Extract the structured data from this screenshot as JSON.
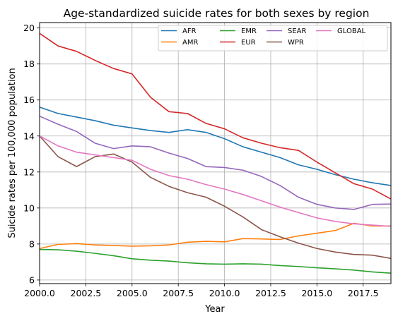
{
  "chart_data": {
    "type": "line",
    "title": "Age-standardized suicide rates for both sexes by region",
    "xlabel": "Year",
    "ylabel": "Suicide rates per 100,000 population",
    "xlim": [
      2000,
      2019
    ],
    "ylim": [
      5.8,
      20.3
    ],
    "xticks": [
      "2000.0",
      "2002.5",
      "2005.0",
      "2007.5",
      "2010.0",
      "2012.5",
      "2015.0",
      "2017.5"
    ],
    "xtick_values": [
      2000,
      2002.5,
      2005,
      2007.5,
      2010,
      2012.5,
      2015,
      2017.5
    ],
    "yticks": [
      "6",
      "8",
      "10",
      "12",
      "14",
      "16",
      "18",
      "20"
    ],
    "ytick_values": [
      6,
      8,
      10,
      12,
      14,
      16,
      18,
      20
    ],
    "grid": true,
    "legend_position": "top-right",
    "x": [
      2000,
      2001,
      2002,
      2003,
      2004,
      2005,
      2006,
      2007,
      2008,
      2009,
      2010,
      2011,
      2012,
      2013,
      2014,
      2015,
      2016,
      2017,
      2018,
      2019
    ],
    "series": [
      {
        "name": "AFR",
        "color": "#1f77b4",
        "values": [
          15.6,
          15.25,
          15.05,
          14.85,
          14.6,
          14.45,
          14.3,
          14.2,
          14.35,
          14.2,
          13.85,
          13.4,
          13.1,
          12.8,
          12.4,
          12.15,
          11.85,
          11.6,
          11.4,
          11.25
        ]
      },
      {
        "name": "AMR",
        "color": "#ff7f0e",
        "values": [
          7.75,
          7.98,
          8.02,
          7.95,
          7.92,
          7.88,
          7.9,
          7.95,
          8.1,
          8.15,
          8.12,
          8.3,
          8.28,
          8.25,
          8.45,
          8.6,
          8.75,
          9.15,
          9.0,
          9.0
        ]
      },
      {
        "name": "EMR",
        "color": "#2ca02c",
        "values": [
          7.7,
          7.68,
          7.6,
          7.48,
          7.35,
          7.18,
          7.1,
          7.05,
          6.96,
          6.9,
          6.88,
          6.9,
          6.88,
          6.8,
          6.75,
          6.68,
          6.62,
          6.55,
          6.45,
          6.38
        ]
      },
      {
        "name": "EUR",
        "color": "#d62728",
        "values": [
          19.7,
          19.0,
          18.7,
          18.2,
          17.75,
          17.45,
          16.15,
          15.35,
          15.25,
          14.7,
          14.4,
          13.9,
          13.6,
          13.35,
          13.2,
          12.55,
          11.95,
          11.35,
          11.05,
          10.5
        ]
      },
      {
        "name": "SEAR",
        "color": "#9467bd",
        "values": [
          15.1,
          14.65,
          14.25,
          13.6,
          13.3,
          13.45,
          13.4,
          13.05,
          12.75,
          12.3,
          12.25,
          12.1,
          11.75,
          11.25,
          10.6,
          10.2,
          10.0,
          9.92,
          10.2,
          10.22
        ]
      },
      {
        "name": "WPR",
        "color": "#8c564b",
        "values": [
          14.0,
          12.85,
          12.3,
          12.85,
          13.0,
          12.55,
          11.7,
          11.2,
          10.85,
          10.6,
          10.1,
          9.5,
          8.8,
          8.4,
          8.05,
          7.75,
          7.55,
          7.42,
          7.38,
          7.2
        ]
      },
      {
        "name": "GLOBAL",
        "color": "#e377c2",
        "values": [
          14.0,
          13.45,
          13.1,
          12.95,
          12.8,
          12.65,
          12.15,
          11.8,
          11.6,
          11.3,
          11.05,
          10.75,
          10.4,
          10.05,
          9.75,
          9.45,
          9.25,
          9.12,
          9.05,
          8.98
        ]
      }
    ]
  }
}
